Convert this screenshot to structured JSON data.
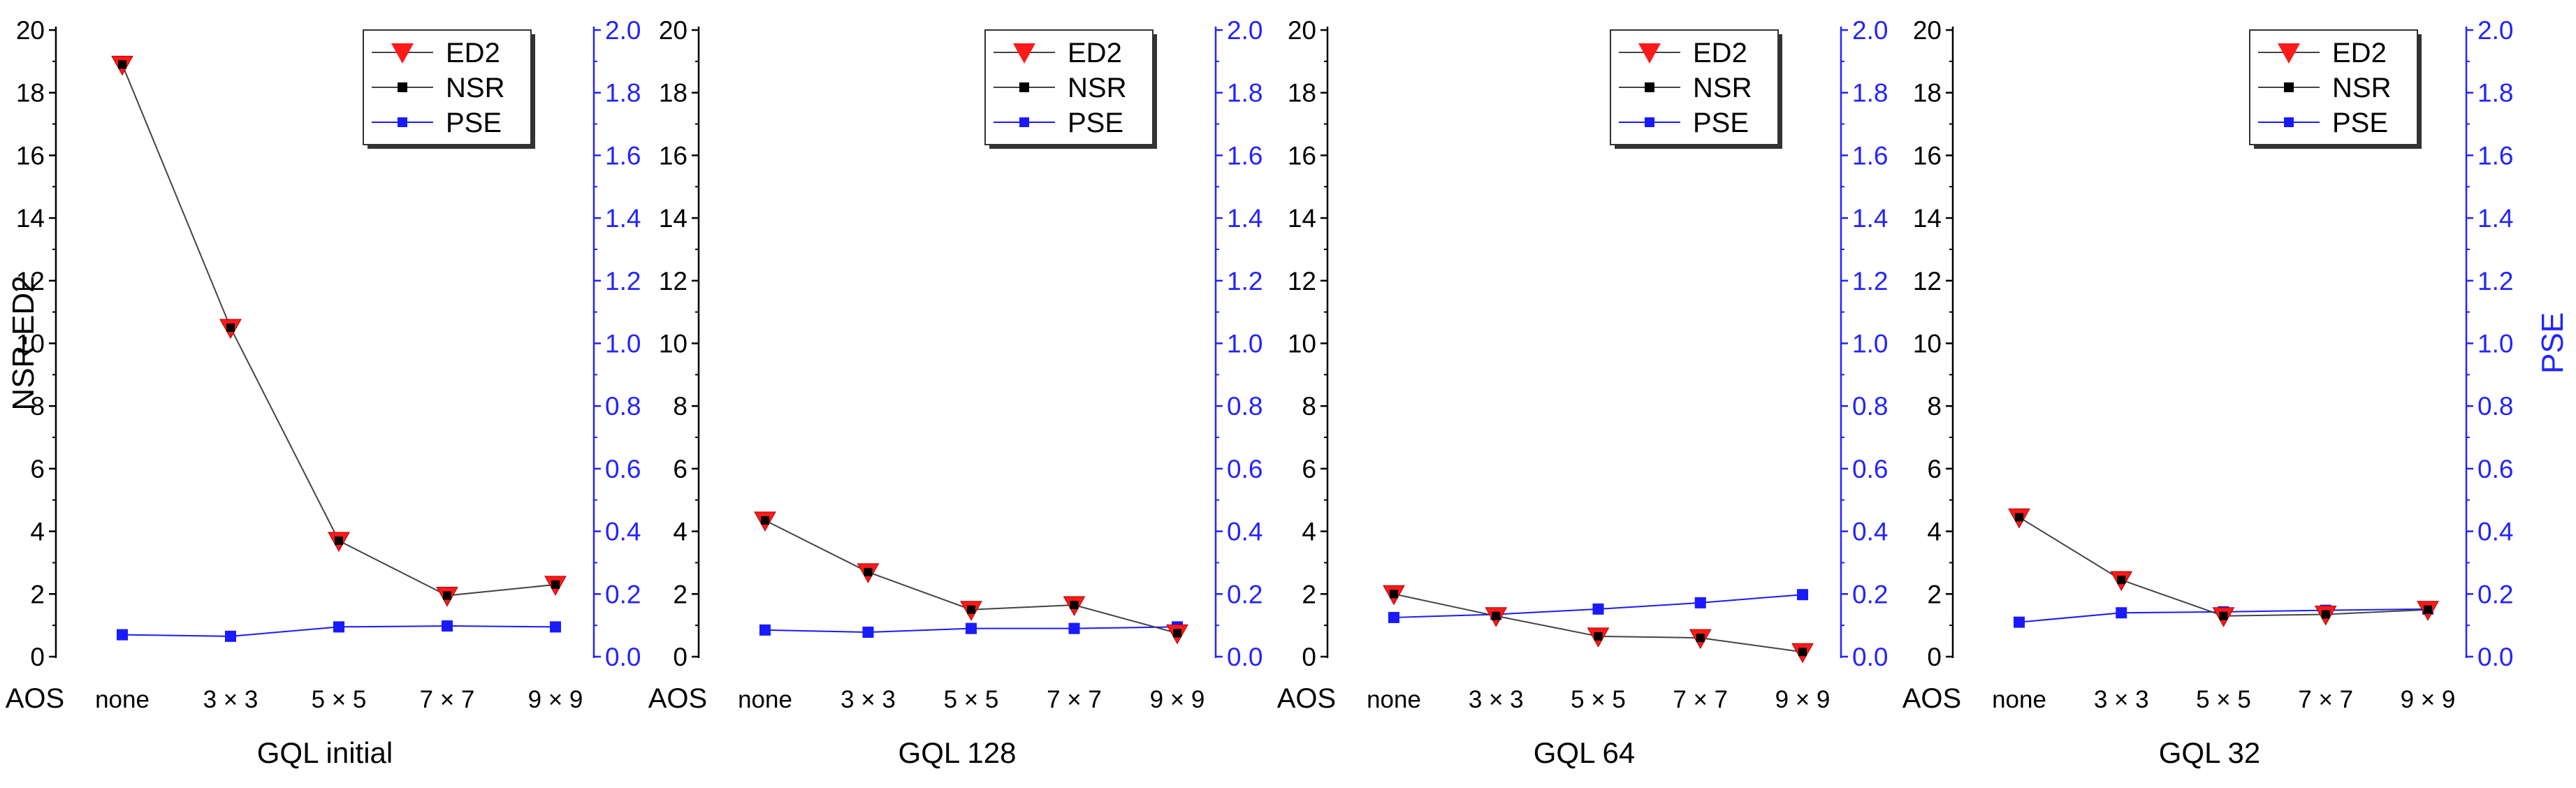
{
  "figure": {
    "left_axis_title": "NSR-ED2",
    "right_axis_title": "PSE",
    "aos_label": "AOS"
  },
  "colors": {
    "ed2": "#ff1a1a",
    "nsr": "#000000",
    "pse": "#1a1aff",
    "left_axis": "#000000",
    "right_axis": "#2323ff",
    "line_gray": "#444444"
  },
  "chart_data": [
    {
      "type": "line",
      "title": "GQL initial",
      "categories": [
        "none",
        "3 × 3",
        "5 × 5",
        "7 × 7",
        "9 × 9"
      ],
      "ylim_left": [
        0,
        20
      ],
      "ylim_right": [
        0,
        2.0
      ],
      "yticks_left": [
        "0",
        "2",
        "4",
        "6",
        "8",
        "10",
        "12",
        "14",
        "16",
        "18",
        "20"
      ],
      "yticks_right": [
        "0.0",
        "0.2",
        "0.4",
        "0.6",
        "0.8",
        "1.0",
        "1.2",
        "1.4",
        "1.6",
        "1.8",
        "2.0"
      ],
      "legend": [
        "ED2",
        "NSR",
        "PSE"
      ],
      "series": [
        {
          "name": "ED2",
          "axis": "left",
          "values": [
            18.9,
            10.5,
            3.7,
            1.95,
            2.3
          ]
        },
        {
          "name": "NSR",
          "axis": "left",
          "values": [
            18.9,
            10.5,
            3.7,
            1.95,
            2.3
          ]
        },
        {
          "name": "PSE",
          "axis": "right",
          "values": [
            0.07,
            0.065,
            0.095,
            0.098,
            0.095
          ]
        }
      ]
    },
    {
      "type": "line",
      "title": "GQL 128",
      "categories": [
        "none",
        "3 × 3",
        "5 × 5",
        "7 × 7",
        "9 × 9"
      ],
      "ylim_left": [
        0,
        20
      ],
      "ylim_right": [
        0,
        2.0
      ],
      "yticks_left": [
        "0",
        "2",
        "4",
        "6",
        "8",
        "10",
        "12",
        "14",
        "16",
        "18",
        "20"
      ],
      "yticks_right": [
        "0.0",
        "0.2",
        "0.4",
        "0.6",
        "0.8",
        "1.0",
        "1.2",
        "1.4",
        "1.6",
        "1.8",
        "2.0"
      ],
      "legend": [
        "ED2",
        "NSR",
        "PSE"
      ],
      "series": [
        {
          "name": "ED2",
          "axis": "left",
          "values": [
            4.35,
            2.7,
            1.5,
            1.65,
            0.75
          ]
        },
        {
          "name": "NSR",
          "axis": "left",
          "values": [
            4.35,
            2.7,
            1.5,
            1.65,
            0.75
          ]
        },
        {
          "name": "PSE",
          "axis": "right",
          "values": [
            0.085,
            0.078,
            0.09,
            0.09,
            0.095
          ]
        }
      ]
    },
    {
      "type": "line",
      "title": "GQL 64",
      "categories": [
        "none",
        "3 × 3",
        "5 × 5",
        "7 × 7",
        "9 × 9"
      ],
      "ylim_left": [
        0,
        20
      ],
      "ylim_right": [
        0,
        2.0
      ],
      "yticks_left": [
        "0",
        "2",
        "4",
        "6",
        "8",
        "10",
        "12",
        "14",
        "16",
        "18",
        "20"
      ],
      "yticks_right": [
        "0.0",
        "0.2",
        "0.4",
        "0.6",
        "0.8",
        "1.0",
        "1.2",
        "1.4",
        "1.6",
        "1.8",
        "2.0"
      ],
      "legend": [
        "ED2",
        "NSR",
        "PSE"
      ],
      "series": [
        {
          "name": "ED2",
          "axis": "left",
          "values": [
            2.0,
            1.3,
            0.65,
            0.6,
            0.15
          ]
        },
        {
          "name": "NSR",
          "axis": "left",
          "values": [
            2.0,
            1.3,
            0.65,
            0.6,
            0.15
          ]
        },
        {
          "name": "PSE",
          "axis": "right",
          "values": [
            0.125,
            0.135,
            0.152,
            0.172,
            0.198
          ]
        }
      ]
    },
    {
      "type": "line",
      "title": "GQL 32",
      "categories": [
        "none",
        "3 × 3",
        "5 × 5",
        "7 × 7",
        "9 × 9"
      ],
      "ylim_left": [
        0,
        20
      ],
      "ylim_right": [
        0,
        2.0
      ],
      "yticks_left": [
        "0",
        "2",
        "4",
        "6",
        "8",
        "10",
        "12",
        "14",
        "16",
        "18",
        "20"
      ],
      "yticks_right": [
        "0.0",
        "0.2",
        "0.4",
        "0.6",
        "0.8",
        "1.0",
        "1.2",
        "1.4",
        "1.6",
        "1.8",
        "2.0"
      ],
      "legend": [
        "ED2",
        "NSR",
        "PSE"
      ],
      "series": [
        {
          "name": "ED2",
          "axis": "left",
          "values": [
            4.45,
            2.45,
            1.3,
            1.35,
            1.5
          ]
        },
        {
          "name": "NSR",
          "axis": "left",
          "values": [
            4.45,
            2.45,
            1.3,
            1.35,
            1.5
          ]
        },
        {
          "name": "PSE",
          "axis": "right",
          "values": [
            0.11,
            0.14,
            0.143,
            0.148,
            0.152
          ]
        }
      ]
    }
  ]
}
